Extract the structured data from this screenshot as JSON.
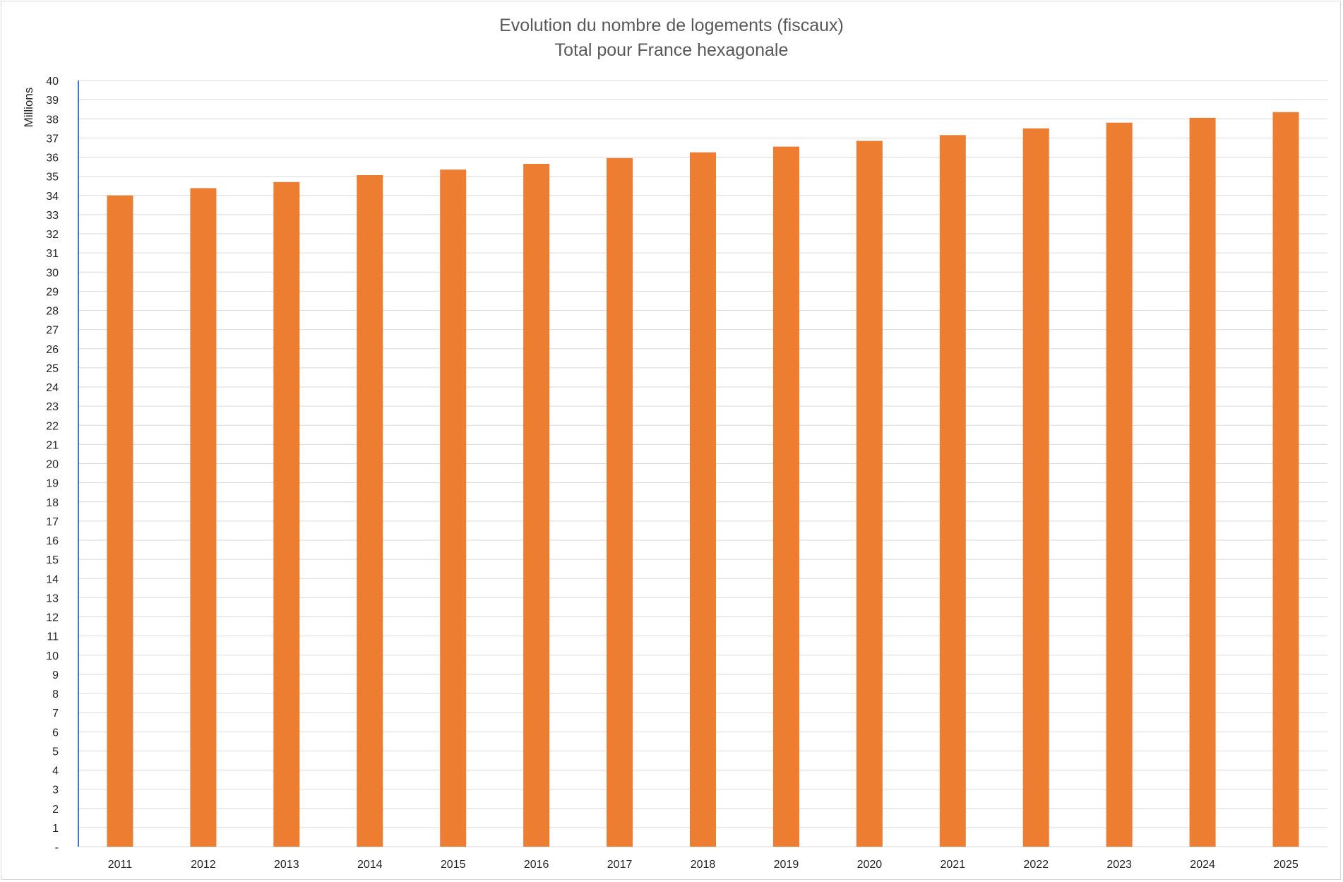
{
  "chart_data": {
    "type": "bar",
    "title": "Evolution du nombre de logements (fiscaux)",
    "subtitle": "Total pour France hexagonale",
    "ylabel": "Millions",
    "xlabel": "",
    "categories": [
      "2011",
      "2012",
      "2013",
      "2014",
      "2015",
      "2016",
      "2017",
      "2018",
      "2019",
      "2020",
      "2021",
      "2022",
      "2023",
      "2024",
      "2025"
    ],
    "values": [
      34.0,
      34.38,
      34.7,
      35.06,
      35.35,
      35.65,
      35.95,
      36.25,
      36.55,
      36.85,
      37.15,
      37.5,
      37.8,
      38.05,
      38.35
    ],
    "ylim": [
      0,
      40
    ],
    "y_tick_labels": [
      "-",
      "1",
      "2",
      "3",
      "4",
      "5",
      "6",
      "7",
      "8",
      "9",
      "10",
      "11",
      "12",
      "13",
      "14",
      "15",
      "16",
      "17",
      "18",
      "19",
      "20",
      "21",
      "22",
      "23",
      "24",
      "25",
      "26",
      "27",
      "28",
      "29",
      "30",
      "31",
      "32",
      "33",
      "34",
      "35",
      "36",
      "37",
      "38",
      "39",
      "40"
    ],
    "grid": true,
    "legend": "none",
    "colors": {
      "bar": "#ed7d31",
      "grid": "#d9d9d9",
      "axis": "#4472c4"
    }
  }
}
